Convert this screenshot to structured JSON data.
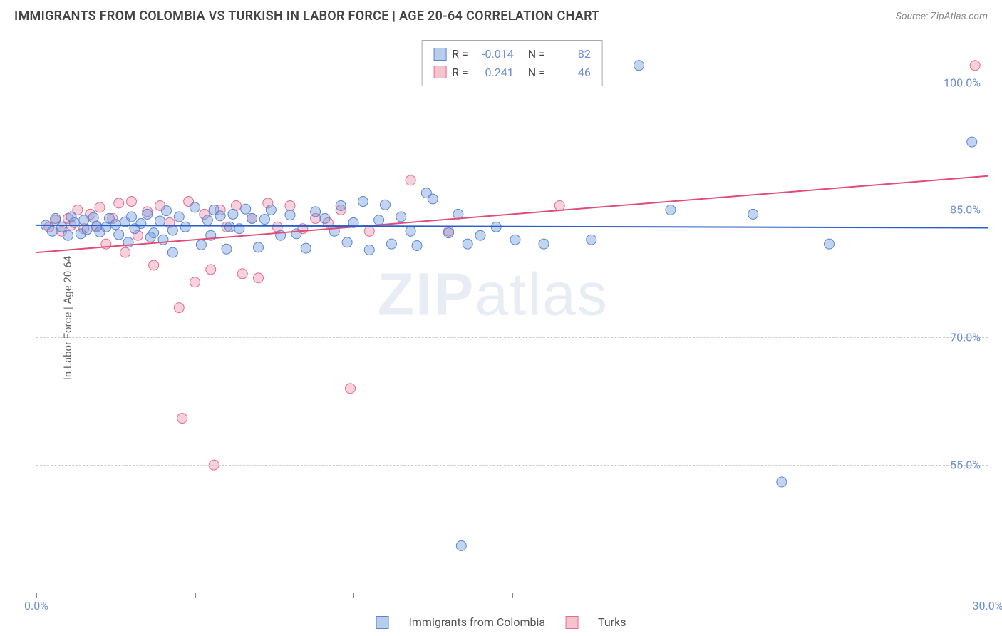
{
  "header": {
    "title": "IMMIGRANTS FROM COLOMBIA VS TURKISH IN LABOR FORCE | AGE 20-64 CORRELATION CHART",
    "source": "Source: ZipAtlas.com"
  },
  "axes": {
    "ylabel": "In Labor Force | Age 20-64",
    "xlim": [
      0,
      30
    ],
    "ylim": [
      40,
      105
    ],
    "yticks": [
      {
        "v": 55,
        "label": "55.0%"
      },
      {
        "v": 70,
        "label": "70.0%"
      },
      {
        "v": 85,
        "label": "85.0%"
      },
      {
        "v": 100,
        "label": "100.0%"
      }
    ],
    "xticks_major": [
      {
        "v": 0,
        "label": "0.0%"
      },
      {
        "v": 30,
        "label": "30.0%"
      }
    ],
    "xticks_minor": [
      5,
      10,
      15,
      20,
      25
    ],
    "grid_color": "#cccccc",
    "axis_color": "#888888",
    "tick_label_color": "#6b8fd6"
  },
  "watermark": {
    "text1": "ZIP",
    "text2": "atlas"
  },
  "legend_stats": [
    {
      "swatch_fill": "#b7cdec",
      "swatch_stroke": "#5a86d6",
      "r": "-0.014",
      "n": "82"
    },
    {
      "swatch_fill": "#f5c3cf",
      "swatch_stroke": "#e76b8d",
      "r": "0.241",
      "n": "46"
    }
  ],
  "bottom_legend": [
    {
      "swatch_fill": "#b7cdec",
      "swatch_stroke": "#5a86d6",
      "label": "Immigrants from Colombia"
    },
    {
      "swatch_fill": "#f5c3cf",
      "swatch_stroke": "#e76b8d",
      "label": "Turks"
    }
  ],
  "series": {
    "colombia": {
      "point_fill": "rgba(120,160,220,0.45)",
      "point_stroke": "#5a86d6",
      "line_color": "#2a5fc7",
      "line_width": 2,
      "marker_radius": 7,
      "trend": {
        "x1": 0,
        "y1": 83.2,
        "x2": 30,
        "y2": 82.9
      },
      "points": [
        [
          0.3,
          83.2
        ],
        [
          0.5,
          82.5
        ],
        [
          0.6,
          84.0
        ],
        [
          0.8,
          83.0
        ],
        [
          1.0,
          82.0
        ],
        [
          1.1,
          84.2
        ],
        [
          1.2,
          83.5
        ],
        [
          1.4,
          82.2
        ],
        [
          1.5,
          83.8
        ],
        [
          1.6,
          82.7
        ],
        [
          1.8,
          84.1
        ],
        [
          1.9,
          83.1
        ],
        [
          2.0,
          82.4
        ],
        [
          2.2,
          83.0
        ],
        [
          2.3,
          84.0
        ],
        [
          2.5,
          83.3
        ],
        [
          2.6,
          82.1
        ],
        [
          2.8,
          83.6
        ],
        [
          3.0,
          84.2
        ],
        [
          3.1,
          82.8
        ],
        [
          3.3,
          83.4
        ],
        [
          3.5,
          84.5
        ],
        [
          3.7,
          82.3
        ],
        [
          3.9,
          83.7
        ],
        [
          4.1,
          84.9
        ],
        [
          4.3,
          82.6
        ],
        [
          4.5,
          84.2
        ],
        [
          4.7,
          83.0
        ],
        [
          5.0,
          85.3
        ],
        [
          5.2,
          80.9
        ],
        [
          5.4,
          83.8
        ],
        [
          5.6,
          85.0
        ],
        [
          5.8,
          84.3
        ],
        [
          6.0,
          80.4
        ],
        [
          6.2,
          84.5
        ],
        [
          6.4,
          82.8
        ],
        [
          6.6,
          85.1
        ],
        [
          7.0,
          80.6
        ],
        [
          7.2,
          83.9
        ],
        [
          7.4,
          85.0
        ],
        [
          7.7,
          82.0
        ],
        [
          8.0,
          84.4
        ],
        [
          8.2,
          82.2
        ],
        [
          8.5,
          80.5
        ],
        [
          8.8,
          84.8
        ],
        [
          9.1,
          84.0
        ],
        [
          9.4,
          82.5
        ],
        [
          9.6,
          85.5
        ],
        [
          9.8,
          81.2
        ],
        [
          10.0,
          83.5
        ],
        [
          10.3,
          86.0
        ],
        [
          10.5,
          80.3
        ],
        [
          10.8,
          83.8
        ],
        [
          11.0,
          85.6
        ],
        [
          11.2,
          81.0
        ],
        [
          11.5,
          84.2
        ],
        [
          11.8,
          82.5
        ],
        [
          12.0,
          80.8
        ],
        [
          12.3,
          87.0
        ],
        [
          12.5,
          86.3
        ],
        [
          13.0,
          82.3
        ],
        [
          13.3,
          84.5
        ],
        [
          13.6,
          81.0
        ],
        [
          14.0,
          82.0
        ],
        [
          14.5,
          83.0
        ],
        [
          15.1,
          81.5
        ],
        [
          16.0,
          81.0
        ],
        [
          19.0,
          102.0
        ],
        [
          20.0,
          85.0
        ],
        [
          22.6,
          84.5
        ],
        [
          23.5,
          53.0
        ],
        [
          25.0,
          81.0
        ],
        [
          13.4,
          45.5
        ],
        [
          4.0,
          81.5
        ],
        [
          4.3,
          80.0
        ],
        [
          6.8,
          84.0
        ],
        [
          3.6,
          81.8
        ],
        [
          2.9,
          81.2
        ],
        [
          5.5,
          82.0
        ],
        [
          6.1,
          83.0
        ],
        [
          29.5,
          93.0
        ],
        [
          17.5,
          81.5
        ]
      ]
    },
    "turks": {
      "point_fill": "rgba(235,140,165,0.40)",
      "point_stroke": "#e76b8d",
      "line_color": "#e04b77",
      "line_width": 2,
      "marker_radius": 7,
      "trend": {
        "x1": 0,
        "y1": 80.0,
        "x2": 30,
        "y2": 89.0
      },
      "points": [
        [
          0.4,
          83.0
        ],
        [
          0.6,
          83.8
        ],
        [
          0.8,
          82.5
        ],
        [
          1.0,
          84.0
        ],
        [
          1.1,
          83.2
        ],
        [
          1.3,
          85.0
        ],
        [
          1.5,
          82.8
        ],
        [
          1.7,
          84.5
        ],
        [
          1.9,
          83.0
        ],
        [
          2.0,
          85.3
        ],
        [
          2.2,
          81.0
        ],
        [
          2.4,
          84.0
        ],
        [
          2.6,
          85.8
        ],
        [
          2.8,
          80.0
        ],
        [
          3.0,
          86.0
        ],
        [
          3.2,
          82.0
        ],
        [
          3.5,
          84.8
        ],
        [
          3.7,
          78.5
        ],
        [
          3.9,
          85.5
        ],
        [
          4.2,
          83.5
        ],
        [
          4.5,
          73.5
        ],
        [
          4.8,
          86.0
        ],
        [
          5.0,
          76.5
        ],
        [
          5.3,
          84.5
        ],
        [
          5.5,
          78.0
        ],
        [
          5.8,
          85.0
        ],
        [
          5.6,
          55.0
        ],
        [
          6.0,
          83.0
        ],
        [
          6.3,
          85.5
        ],
        [
          6.5,
          77.5
        ],
        [
          6.8,
          84.0
        ],
        [
          7.0,
          77.0
        ],
        [
          7.3,
          85.8
        ],
        [
          7.6,
          83.0
        ],
        [
          8.0,
          85.5
        ],
        [
          8.4,
          82.8
        ],
        [
          8.8,
          84.0
        ],
        [
          9.2,
          83.5
        ],
        [
          9.6,
          85.0
        ],
        [
          9.9,
          64.0
        ],
        [
          10.5,
          82.5
        ],
        [
          11.8,
          88.5
        ],
        [
          13.0,
          82.5
        ],
        [
          16.5,
          85.5
        ],
        [
          29.6,
          102.0
        ],
        [
          4.6,
          60.5
        ]
      ]
    }
  }
}
